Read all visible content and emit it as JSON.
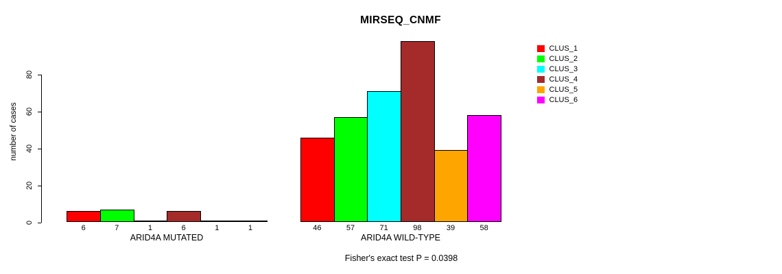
{
  "title": "MIRSEQ_CNMF",
  "footer": {
    "note": "Fisher's exact test P = 0.0398"
  },
  "chart_data": {
    "type": "bar",
    "title": "MIRSEQ_CNMF",
    "xlabel": "",
    "ylabel": "number of cases",
    "ylim": [
      0,
      98
    ],
    "yticks": [
      0,
      20,
      40,
      60,
      80
    ],
    "grid": false,
    "legend_position": "right",
    "bar_value_labels_shown": true,
    "series_names": [
      "CLUS_1",
      "CLUS_2",
      "CLUS_3",
      "CLUS_4",
      "CLUS_5",
      "CLUS_6"
    ],
    "colors": [
      "#FF0000",
      "#00FF00",
      "#00FFFF",
      "#A52A2A",
      "#FFA500",
      "#FF00FF"
    ],
    "groups": [
      {
        "label": "ARID4A MUTATED",
        "values": [
          6,
          7,
          1,
          6,
          1,
          1
        ]
      },
      {
        "label": "ARID4A WILD-TYPE",
        "values": [
          46,
          57,
          71,
          98,
          39,
          58
        ]
      }
    ],
    "annotation": "Fisher's exact test P = 0.0398"
  },
  "legend": {
    "items": [
      {
        "label": "CLUS_1",
        "color": "#FF0000"
      },
      {
        "label": "CLUS_2",
        "color": "#00FF00"
      },
      {
        "label": "CLUS_3",
        "color": "#00FFFF"
      },
      {
        "label": "CLUS_4",
        "color": "#A52A2A"
      },
      {
        "label": "CLUS_5",
        "color": "#FFA500"
      },
      {
        "label": "CLUS_6",
        "color": "#FF00FF"
      }
    ]
  }
}
